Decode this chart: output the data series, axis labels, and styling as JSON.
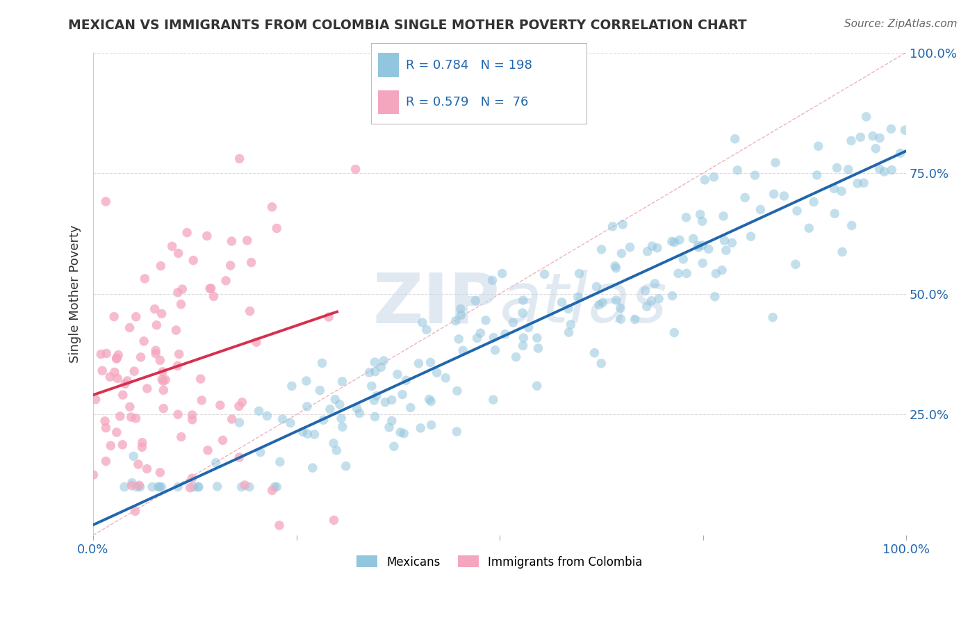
{
  "title": "MEXICAN VS IMMIGRANTS FROM COLOMBIA SINGLE MOTHER POVERTY CORRELATION CHART",
  "source": "Source: ZipAtlas.com",
  "ylabel": "Single Mother Poverty",
  "xlim": [
    0,
    1
  ],
  "ylim": [
    0,
    1
  ],
  "blue_R": 0.784,
  "blue_N": 198,
  "pink_R": 0.579,
  "pink_N": 76,
  "blue_color": "#92c5de",
  "pink_color": "#f4a6be",
  "blue_line_color": "#2166ac",
  "pink_line_color": "#d6304e",
  "diagonal_color": "#e8a0b0",
  "watermark_text": "ZIPatlas",
  "watermark_color": "#d0dff0",
  "legend_label_blue": "Mexicans",
  "legend_label_pink": "Immigrants from Colombia",
  "title_color": "#333333",
  "axis_color": "#2166ac",
  "background_color": "#ffffff",
  "grid_color": "#cccccc",
  "source_color": "#666666"
}
